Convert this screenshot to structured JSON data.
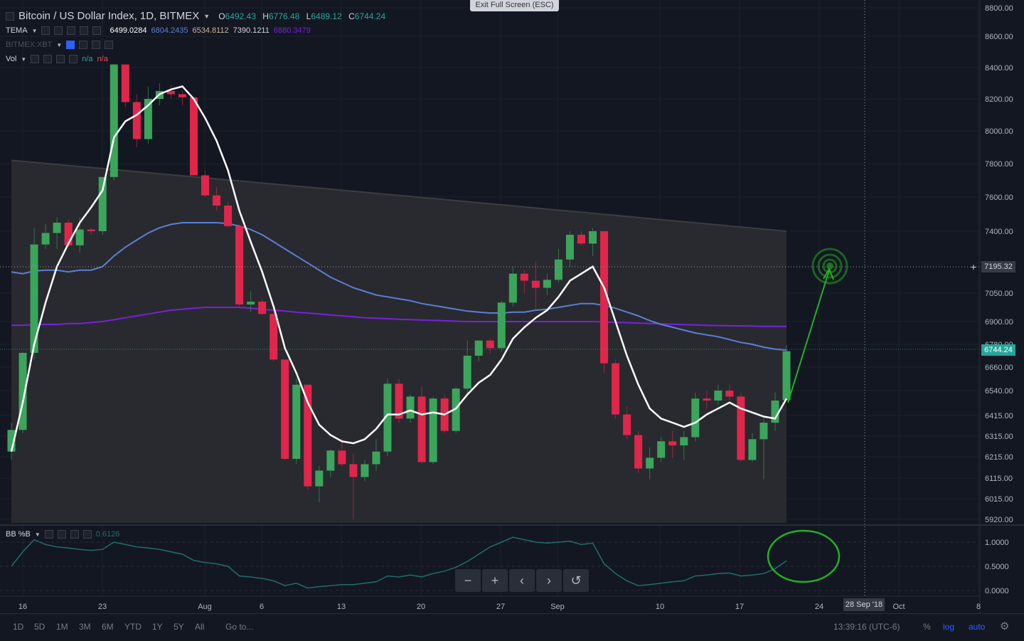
{
  "header": {
    "symbol_title": "Bitcoin / US Dollar Index, 1D, BITMEX",
    "open_label": "O",
    "open": "6492.43",
    "high_label": "H",
    "high": "6776.48",
    "low_label": "L",
    "low": "6489.12",
    "close_label": "C",
    "close": "6744.24",
    "exit_fullscreen": "Exit Full Screen (ESC)"
  },
  "indicators": {
    "tema": {
      "name": "TEMA",
      "values": [
        "6499.0284",
        "6804.2435",
        "6534.8112",
        "7390.1211",
        "6880.3479"
      ],
      "colors": [
        "#ffffff",
        "#5b7fd8",
        "#c8b59a",
        "#d1d4dc",
        "#7b1fe0"
      ]
    },
    "xbt": {
      "name": "BITMEX:XBT"
    },
    "vol": {
      "name": "Vol",
      "values": [
        "n/a",
        "n/a"
      ],
      "colors": [
        "#26a69a",
        "#ef5350"
      ]
    },
    "bb": {
      "name": "BB %B",
      "value": "0.6126"
    }
  },
  "colors": {
    "background": "#131722",
    "up": "#3ba55c",
    "down": "#e0264b",
    "tema": "#ffffff",
    "ma_blue": "#5b7fd8",
    "ma_purple": "#7b1fe0",
    "annotation": "#22b022",
    "bb_line": "#1f6e6b"
  },
  "price_axis": {
    "labels": [
      "8800.00",
      "8600.00",
      "8400.00",
      "8200.00",
      "8000.00",
      "7800.00",
      "7600.00",
      "7400.00",
      "7050.00",
      "6900.00",
      "6780.00",
      "6660.00",
      "6540.00",
      "6415.00",
      "6315.00",
      "6215.00",
      "6115.00",
      "6015.00",
      "5920.00"
    ],
    "crosshair_value": "7195.32",
    "last_value": "6744.24"
  },
  "bb_axis": {
    "labels": [
      "1.0000",
      "0.5000",
      "0.0000"
    ]
  },
  "time_axis": {
    "labels": [
      "16",
      "23",
      "Aug",
      "6",
      "13",
      "20",
      "27",
      "Sep",
      "10",
      "17",
      "24",
      "Oct",
      "8"
    ],
    "crosshair_date": "28 Sep '18"
  },
  "bottom_bar": {
    "ranges": [
      "1D",
      "5D",
      "1M",
      "3M",
      "6M",
      "YTD",
      "1Y",
      "5Y",
      "All"
    ],
    "goto": "Go to...",
    "time": "13:39:16 (UTC-6)",
    "percent": "%",
    "log": "log",
    "auto": "auto"
  },
  "nav": [
    "−",
    "+",
    "‹",
    "›",
    "↺"
  ],
  "chart_data": {
    "type": "candlestick",
    "title": "Bitcoin / US Dollar Index, 1D, BITMEX",
    "dates_start": "2018-07-15",
    "candles": [
      {
        "o": 6240,
        "h": 6380,
        "l": 6200,
        "c": 6345
      },
      {
        "o": 6345,
        "h": 6740,
        "l": 6330,
        "c": 6735
      },
      {
        "o": 6735,
        "h": 7420,
        "l": 6700,
        "c": 7325
      },
      {
        "o": 7325,
        "h": 7440,
        "l": 7300,
        "c": 7390
      },
      {
        "o": 7390,
        "h": 7480,
        "l": 7300,
        "c": 7450
      },
      {
        "o": 7450,
        "h": 7470,
        "l": 7310,
        "c": 7320
      },
      {
        "o": 7320,
        "h": 7480,
        "l": 7280,
        "c": 7410
      },
      {
        "o": 7410,
        "h": 7420,
        "l": 7380,
        "c": 7400
      },
      {
        "o": 7400,
        "h": 7710,
        "l": 7380,
        "c": 7720
      },
      {
        "o": 7720,
        "h": 8420,
        "l": 7700,
        "c": 8420
      },
      {
        "o": 8420,
        "h": 8420,
        "l": 8150,
        "c": 8180
      },
      {
        "o": 8180,
        "h": 8230,
        "l": 7900,
        "c": 7950
      },
      {
        "o": 7950,
        "h": 8280,
        "l": 7920,
        "c": 8200
      },
      {
        "o": 8200,
        "h": 8300,
        "l": 8160,
        "c": 8250
      },
      {
        "o": 8250,
        "h": 8290,
        "l": 8200,
        "c": 8230
      },
      {
        "o": 8230,
        "h": 8250,
        "l": 8160,
        "c": 8210
      },
      {
        "o": 8210,
        "h": 8210,
        "l": 7730,
        "c": 7730
      },
      {
        "o": 7730,
        "h": 7760,
        "l": 7600,
        "c": 7610
      },
      {
        "o": 7610,
        "h": 7660,
        "l": 7520,
        "c": 7550
      },
      {
        "o": 7550,
        "h": 7570,
        "l": 7420,
        "c": 7430
      },
      {
        "o": 7430,
        "h": 7440,
        "l": 6980,
        "c": 6990
      },
      {
        "o": 6990,
        "h": 7060,
        "l": 6950,
        "c": 7005
      },
      {
        "o": 7005,
        "h": 7020,
        "l": 6935,
        "c": 6940
      },
      {
        "o": 6940,
        "h": 6950,
        "l": 6690,
        "c": 6700
      },
      {
        "o": 6700,
        "h": 6700,
        "l": 6200,
        "c": 6205
      },
      {
        "o": 6205,
        "h": 6600,
        "l": 6180,
        "c": 6570
      },
      {
        "o": 6570,
        "h": 6570,
        "l": 6060,
        "c": 6075
      },
      {
        "o": 6075,
        "h": 6170,
        "l": 6000,
        "c": 6150
      },
      {
        "o": 6150,
        "h": 6250,
        "l": 6120,
        "c": 6245
      },
      {
        "o": 6245,
        "h": 6300,
        "l": 6170,
        "c": 6180
      },
      {
        "o": 6180,
        "h": 6230,
        "l": 5920,
        "c": 6120
      },
      {
        "o": 6120,
        "h": 6200,
        "l": 6100,
        "c": 6180
      },
      {
        "o": 6180,
        "h": 6300,
        "l": 6150,
        "c": 6240
      },
      {
        "o": 6240,
        "h": 6600,
        "l": 6220,
        "c": 6575
      },
      {
        "o": 6575,
        "h": 6600,
        "l": 6380,
        "c": 6400
      },
      {
        "o": 6400,
        "h": 6520,
        "l": 6380,
        "c": 6510
      },
      {
        "o": 6510,
        "h": 6560,
        "l": 6180,
        "c": 6190
      },
      {
        "o": 6190,
        "h": 6510,
        "l": 6180,
        "c": 6500
      },
      {
        "o": 6500,
        "h": 6520,
        "l": 6330,
        "c": 6340
      },
      {
        "o": 6340,
        "h": 6560,
        "l": 6330,
        "c": 6550
      },
      {
        "o": 6550,
        "h": 6800,
        "l": 6520,
        "c": 6720
      },
      {
        "o": 6720,
        "h": 6800,
        "l": 6690,
        "c": 6800
      },
      {
        "o": 6800,
        "h": 6810,
        "l": 6730,
        "c": 6760
      },
      {
        "o": 6760,
        "h": 7010,
        "l": 6740,
        "c": 7000
      },
      {
        "o": 7000,
        "h": 7200,
        "l": 6980,
        "c": 7160
      },
      {
        "o": 7160,
        "h": 7180,
        "l": 7050,
        "c": 7120
      },
      {
        "o": 7120,
        "h": 7230,
        "l": 6960,
        "c": 7080
      },
      {
        "o": 7080,
        "h": 7160,
        "l": 7040,
        "c": 7125
      },
      {
        "o": 7125,
        "h": 7300,
        "l": 7110,
        "c": 7240
      },
      {
        "o": 7240,
        "h": 7400,
        "l": 7200,
        "c": 7380
      },
      {
        "o": 7380,
        "h": 7400,
        "l": 7320,
        "c": 7330
      },
      {
        "o": 7330,
        "h": 7420,
        "l": 7260,
        "c": 7400
      },
      {
        "o": 7400,
        "h": 7400,
        "l": 6630,
        "c": 6680
      },
      {
        "o": 6680,
        "h": 6700,
        "l": 6400,
        "c": 6420
      },
      {
        "o": 6420,
        "h": 6460,
        "l": 6300,
        "c": 6320
      },
      {
        "o": 6320,
        "h": 6340,
        "l": 6140,
        "c": 6160
      },
      {
        "o": 6160,
        "h": 6260,
        "l": 6110,
        "c": 6210
      },
      {
        "o": 6210,
        "h": 6310,
        "l": 6190,
        "c": 6290
      },
      {
        "o": 6290,
        "h": 6340,
        "l": 6210,
        "c": 6270
      },
      {
        "o": 6270,
        "h": 6340,
        "l": 6200,
        "c": 6310
      },
      {
        "o": 6310,
        "h": 6530,
        "l": 6290,
        "c": 6500
      },
      {
        "o": 6500,
        "h": 6540,
        "l": 6450,
        "c": 6490
      },
      {
        "o": 6490,
        "h": 6570,
        "l": 6470,
        "c": 6540
      },
      {
        "o": 6540,
        "h": 6570,
        "l": 6490,
        "c": 6510
      },
      {
        "o": 6510,
        "h": 6530,
        "l": 6190,
        "c": 6200
      },
      {
        "o": 6200,
        "h": 6330,
        "l": 6190,
        "c": 6300
      },
      {
        "o": 6300,
        "h": 6400,
        "l": 6110,
        "c": 6380
      },
      {
        "o": 6380,
        "h": 6530,
        "l": 6340,
        "c": 6490
      },
      {
        "o": 6492,
        "h": 6776,
        "l": 6489,
        "c": 6744
      }
    ],
    "tema": [
      6240,
      6480,
      6780,
      7000,
      7200,
      7330,
      7450,
      7540,
      7640,
      7960,
      8060,
      8100,
      8160,
      8230,
      8260,
      8280,
      8200,
      8080,
      7940,
      7760,
      7520,
      7340,
      7170,
      6980,
      6760,
      6630,
      6480,
      6370,
      6320,
      6290,
      6280,
      6300,
      6350,
      6420,
      6420,
      6440,
      6420,
      6430,
      6420,
      6450,
      6520,
      6580,
      6620,
      6700,
      6810,
      6870,
      6920,
      6960,
      7030,
      7120,
      7160,
      7200,
      7080,
      6900,
      6720,
      6570,
      6450,
      6400,
      6380,
      6360,
      6380,
      6420,
      6450,
      6480,
      6450,
      6430,
      6410,
      6400,
      6500
    ],
    "ma_blue": [
      7170,
      7160,
      7175,
      7180,
      7180,
      7170,
      7180,
      7180,
      7200,
      7260,
      7310,
      7350,
      7390,
      7420,
      7440,
      7450,
      7450,
      7450,
      7450,
      7445,
      7430,
      7410,
      7380,
      7340,
      7300,
      7260,
      7220,
      7180,
      7140,
      7110,
      7080,
      7060,
      7040,
      7030,
      7020,
      7010,
      6995,
      6985,
      6975,
      6965,
      6955,
      6950,
      6945,
      6945,
      6950,
      6950,
      6960,
      6965,
      6975,
      6985,
      6995,
      6995,
      6985,
      6970,
      6950,
      6930,
      6905,
      6885,
      6870,
      6855,
      6840,
      6830,
      6820,
      6805,
      6790,
      6780,
      6765,
      6755,
      6750
    ],
    "ma_purple": [
      6880,
      6880,
      6885,
      6885,
      6885,
      6890,
      6890,
      6895,
      6900,
      6910,
      6920,
      6930,
      6940,
      6950,
      6960,
      6965,
      6970,
      6975,
      6975,
      6975,
      6975,
      6970,
      6965,
      6960,
      6955,
      6950,
      6945,
      6940,
      6935,
      6930,
      6925,
      6920,
      6918,
      6915,
      6912,
      6910,
      6908,
      6906,
      6904,
      6902,
      6900,
      6900,
      6900,
      6900,
      6900,
      6900,
      6900,
      6900,
      6900,
      6900,
      6900,
      6900,
      6898,
      6896,
      6894,
      6892,
      6890,
      6888,
      6886,
      6884,
      6882,
      6880,
      6879,
      6878,
      6877,
      6876,
      6875,
      6875,
      6874
    ],
    "bb_percent": [
      0.5,
      0.8,
      1.05,
      0.95,
      0.9,
      0.88,
      0.85,
      0.83,
      0.85,
      1.0,
      0.95,
      0.9,
      0.88,
      0.85,
      0.8,
      0.75,
      0.62,
      0.58,
      0.55,
      0.5,
      0.3,
      0.28,
      0.25,
      0.2,
      0.1,
      0.15,
      0.05,
      0.08,
      0.1,
      0.12,
      0.12,
      0.15,
      0.18,
      0.3,
      0.28,
      0.32,
      0.28,
      0.35,
      0.4,
      0.48,
      0.6,
      0.75,
      0.9,
      1.0,
      1.1,
      1.05,
      1.0,
      0.98,
      1.0,
      1.02,
      0.95,
      0.98,
      0.55,
      0.35,
      0.2,
      0.1,
      0.12,
      0.15,
      0.18,
      0.2,
      0.3,
      0.32,
      0.35,
      0.36,
      0.3,
      0.32,
      0.35,
      0.45,
      0.6126
    ],
    "ylim": [
      5920,
      8800
    ]
  }
}
